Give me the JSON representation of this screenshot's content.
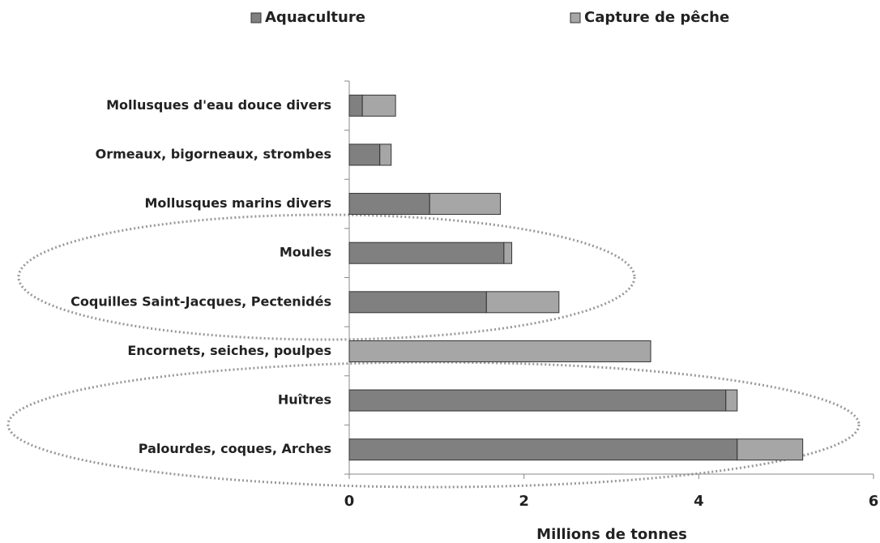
{
  "chart_data": {
    "type": "stacked-barh",
    "xlabel": "Millions de tonnes",
    "categories": [
      "Mollusques d'eau douce divers",
      "Ormeaux, bigorneaux, strombes",
      "Mollusques marins divers",
      "Moules",
      "Coquilles Saint-Jacques, Pectenidés",
      "Encornets, seiches, poulpes",
      "Huîtres",
      "Palourdes, coques, Arches"
    ],
    "series": [
      {
        "name": "Aquaculture",
        "color": "#808080",
        "values": [
          0.15,
          0.35,
          0.92,
          1.77,
          1.57,
          0,
          4.31,
          4.44
        ]
      },
      {
        "name": "Capture de pêche",
        "color": "#a6a6a6",
        "values": [
          0.38,
          0.13,
          0.81,
          0.09,
          0.83,
          3.45,
          0.13,
          0.75
        ]
      }
    ],
    "xlim": [
      0,
      6
    ],
    "xticks": [
      0,
      2,
      4,
      6
    ],
    "grid": false,
    "legend": "top"
  }
}
